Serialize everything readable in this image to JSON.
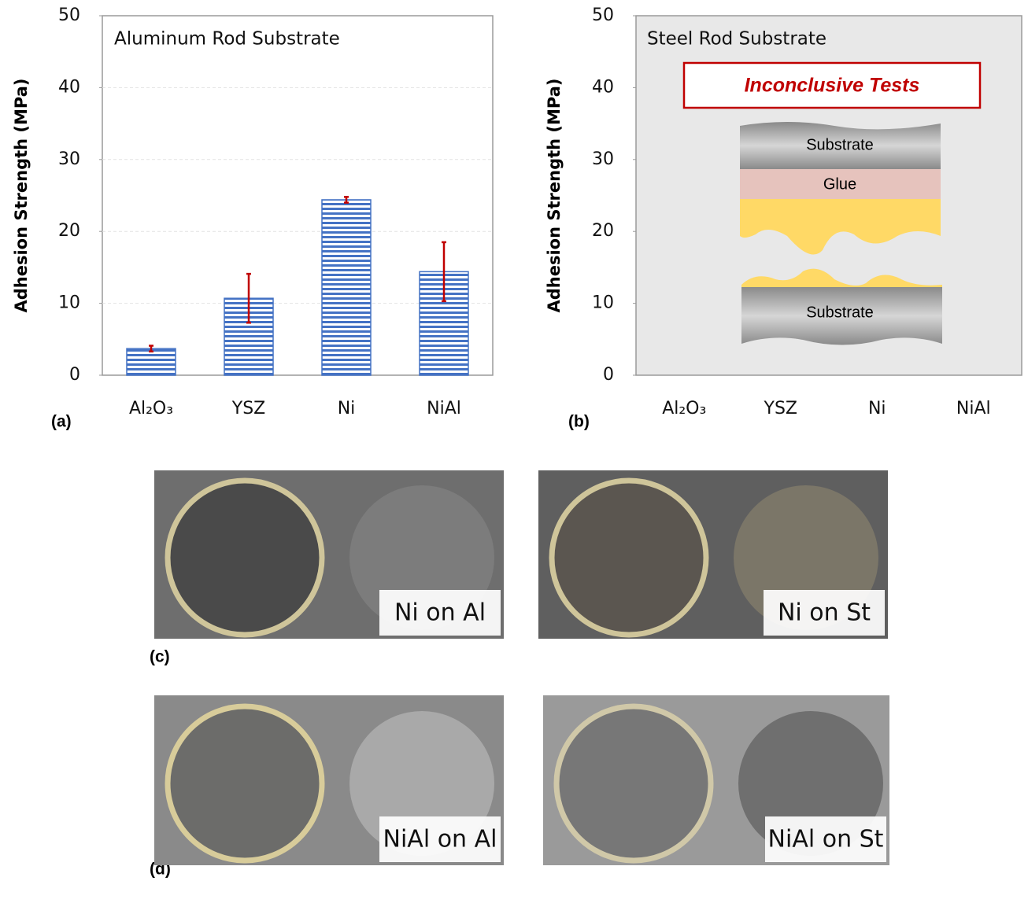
{
  "chart_data": [
    {
      "type": "bar",
      "title": "Aluminum Rod Substrate",
      "y_label": "Adhesion Strength (MPa)",
      "categories": [
        "Al₂O₃",
        "YSZ",
        "Ni",
        "NiAl"
      ],
      "values": [
        3.7,
        10.7,
        24.4,
        14.4
      ],
      "errors": [
        0.4,
        3.4,
        0.4,
        4.1
      ],
      "color": "#4472c4",
      "error_color": "#c00000",
      "ylim": [
        0,
        50
      ],
      "yticks": [
        0,
        10,
        20,
        30,
        40,
        50
      ],
      "grid": true
    },
    {
      "type": "bar",
      "title": "Steel Rod Substrate",
      "y_label": "Adhesion Strength (MPa)",
      "categories": [
        "Al₂O₃",
        "YSZ",
        "Ni",
        "NiAl"
      ],
      "ylim": [
        0,
        50
      ],
      "yticks": [
        0,
        10,
        20,
        30,
        40,
        50
      ],
      "grid": false,
      "annotation": "Inconclusive Tests",
      "diagram_labels": [
        "Substrate",
        "Glue",
        "Substrate"
      ]
    }
  ],
  "panel_labels": [
    "(a)",
    "(b)",
    "(c)",
    "(d)"
  ],
  "photos": [
    "Ni on Al",
    "Ni on St",
    "NiAl on Al",
    "NiAl on St"
  ]
}
